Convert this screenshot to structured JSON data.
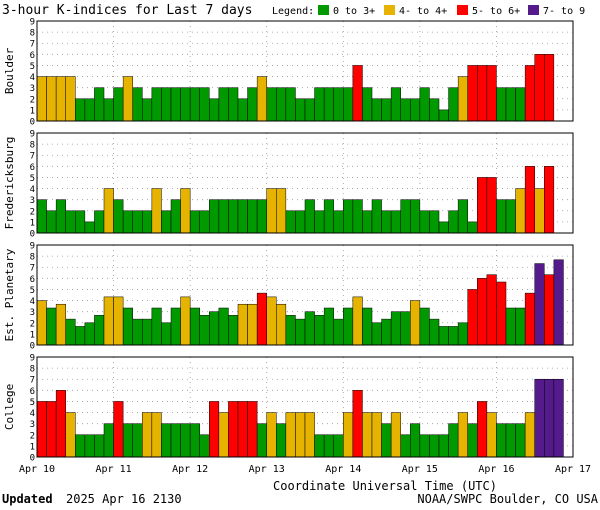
{
  "title": "3-hour K-indices for Last 7 days",
  "legend": {
    "label": "Legend:",
    "items": [
      {
        "label": "0 to 3+",
        "color": "#009900"
      },
      {
        "label": "4- to 4+",
        "color": "#e6b400"
      },
      {
        "label": "5- to 6+",
        "color": "#ff0000"
      },
      {
        "label": "7- to 9",
        "color": "#551a8b"
      }
    ]
  },
  "footer": {
    "updated_label": "Updated",
    "updated_value": "2025 Apr 16 2130",
    "source": "NOAA/SWPC Boulder, CO USA"
  },
  "chart_data": {
    "type": "bar",
    "xlabel": "Coordinate Universal Time (UTC)",
    "x_ticks": [
      "Apr 10",
      "Apr 11",
      "Apr 12",
      "Apr 13",
      "Apr 14",
      "Apr 15",
      "Apr 16",
      "Apr 17"
    ],
    "y_ticks": [
      "0",
      "1",
      "2",
      "3",
      "4",
      "5",
      "6",
      "7",
      "8",
      "9"
    ],
    "ylim": [
      0,
      9
    ],
    "bins_per_day": 8,
    "grid": true,
    "panels": [
      {
        "name": "Boulder",
        "values": [
          4,
          4,
          4,
          4,
          2,
          2,
          3,
          2,
          3,
          4,
          3,
          2,
          3,
          3,
          3,
          3,
          3,
          3,
          2,
          3,
          3,
          2,
          3,
          4,
          3,
          3,
          3,
          2,
          2,
          3,
          3,
          3,
          3,
          5,
          3,
          2,
          2,
          3,
          2,
          2,
          3,
          2,
          1,
          3,
          4,
          5,
          5,
          5,
          3,
          3,
          3,
          5,
          6,
          6,
          0
        ]
      },
      {
        "name": "Fredericksburg",
        "values": [
          3,
          2,
          3,
          2,
          2,
          1,
          2,
          4,
          3,
          2,
          2,
          2,
          4,
          2,
          3,
          4,
          2,
          2,
          3,
          3,
          3,
          3,
          3,
          3,
          4,
          4,
          2,
          2,
          3,
          2,
          3,
          2,
          3,
          3,
          2,
          3,
          2,
          2,
          3,
          3,
          2,
          2,
          1,
          2,
          3,
          1,
          5,
          5,
          3,
          3,
          4,
          6,
          4,
          6,
          0
        ]
      },
      {
        "name": "Est. Planetary",
        "values": [
          4.0,
          3.33,
          3.67,
          2.33,
          1.67,
          2.0,
          2.67,
          4.33,
          4.33,
          3.33,
          2.33,
          2.33,
          3.33,
          2.0,
          3.33,
          4.33,
          3.33,
          2.67,
          3.0,
          3.33,
          2.67,
          3.67,
          3.67,
          4.67,
          4.33,
          3.67,
          2.67,
          2.33,
          3.0,
          2.67,
          3.33,
          2.33,
          3.33,
          4.33,
          3.33,
          2.0,
          2.33,
          3.0,
          3.0,
          4.0,
          3.33,
          2.33,
          1.67,
          1.67,
          2.0,
          5.0,
          6.0,
          6.33,
          5.67,
          3.33,
          3.33,
          4.67,
          7.33,
          6.33,
          7.67
        ]
      },
      {
        "name": "College",
        "values": [
          5,
          5,
          6,
          4,
          2,
          2,
          2,
          3,
          5,
          3,
          3,
          4,
          4,
          3,
          3,
          3,
          3,
          2,
          5,
          4,
          5,
          5,
          5,
          3,
          4,
          3,
          4,
          4,
          4,
          2,
          2,
          2,
          4,
          6,
          4,
          4,
          3,
          4,
          2,
          3,
          2,
          2,
          2,
          3,
          4,
          3,
          5,
          4,
          3,
          3,
          3,
          4,
          7,
          7,
          7,
          0
        ]
      }
    ]
  }
}
